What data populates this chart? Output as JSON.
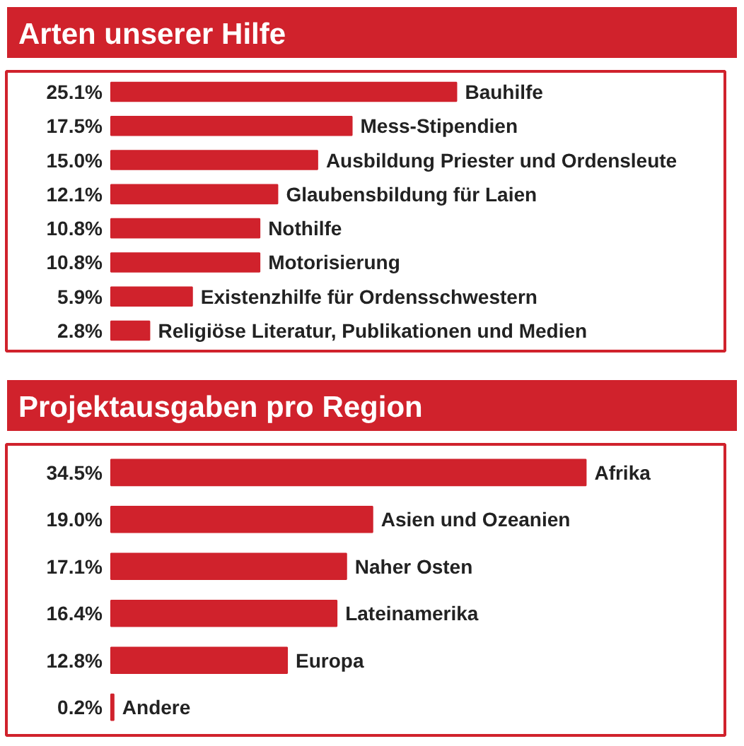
{
  "chart_data": [
    {
      "type": "bar",
      "orientation": "horizontal",
      "title": "Arten unserer Hilfe",
      "categories": [
        "Bauhilfe",
        "Mess-Stipendien",
        "Ausbildung Priester und Ordensleute",
        "Glaubensbildung für Laien",
        "Nothilfe",
        "Motorisierung",
        "Existenzhilfe für Ordensschwestern",
        "Religiöse Literatur, Publikationen und Medien"
      ],
      "values": [
        25.1,
        17.5,
        15.0,
        12.1,
        10.8,
        10.8,
        5.9,
        2.8
      ],
      "value_labels": [
        "25.1%",
        "17.5%",
        "15.0%",
        "12.1%",
        "10.8%",
        "10.8%",
        "5.9%",
        "2.8%"
      ],
      "color": "#d0222c"
    },
    {
      "type": "bar",
      "orientation": "horizontal",
      "title": "Projektausgaben pro Region",
      "categories": [
        "Afrika",
        "Asien und Ozeanien",
        "Naher Osten",
        "Lateinamerika",
        "Europa",
        "Andere"
      ],
      "values": [
        34.5,
        19.0,
        17.1,
        16.4,
        12.8,
        0.2
      ],
      "value_labels": [
        "34.5%",
        "19.0%",
        "17.1%",
        "16.4%",
        "12.8%",
        "0.2%"
      ],
      "color": "#d0222c"
    }
  ]
}
